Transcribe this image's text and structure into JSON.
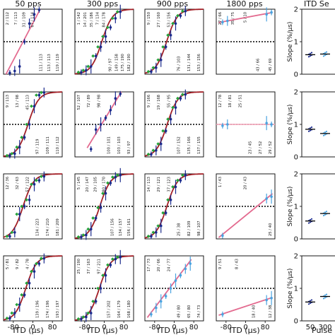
{
  "figure": {
    "columns": [
      {
        "title": "50 pps"
      },
      {
        "title": "300 pps"
      },
      {
        "title": "900 pps"
      },
      {
        "title": "1800 pps"
      }
    ],
    "slope_panel_title": "ITD Se",
    "xlabel": "ITD (µs)",
    "slope_ylabel": "Slope (%/µs)",
    "slope_xlabel": "Pulse R",
    "colors": {
      "sigmoid": "#a31f26",
      "linear": "#e36a8f",
      "flat": "#f4aec0",
      "marker_dark": "#1a2a8c",
      "marker_light": "#4aa3e0",
      "diamond": "#25a23a"
    }
  },
  "chart_data": {
    "type": "scatter",
    "xlim": [
      -120,
      120
    ],
    "ylim": [
      0,
      1
    ],
    "reference_line_y": 0.5,
    "x_ticks": [
      -80,
      0,
      80
    ],
    "x_tick_labels": [
      "-80",
      "0",
      "80"
    ],
    "panels": [
      {
        "row": 0,
        "col": 0,
        "fit": "linear",
        "points": [
          [
            -100,
            0.02
          ],
          [
            -80,
            0.05
          ],
          [
            -60,
            0.12
          ],
          [
            -40,
            0.5
          ],
          [
            -20,
            0.78
          ],
          [
            0,
            0.92
          ],
          [
            20,
            0.99
          ]
        ],
        "labels": [
          "2 / 112",
          "7 / 113",
          "31 / 109",
          "67 / 114",
          "111 / 113",
          "113 / 113",
          "119 / 119"
        ]
      },
      {
        "row": 0,
        "col": 1,
        "fit": "sigmoid",
        "points": [
          [
            -100,
            0.03
          ],
          [
            -80,
            0.06
          ],
          [
            -60,
            0.12
          ],
          [
            -40,
            0.28
          ],
          [
            -20,
            0.42
          ],
          [
            0,
            0.58
          ],
          [
            20,
            0.72
          ],
          [
            40,
            0.86
          ],
          [
            60,
            0.96
          ]
        ],
        "labels": [
          "1 / 142",
          "14 / 201",
          "35 / 186",
          "7 / 134",
          "84 / 178",
          "90 / 97",
          "149 / 158",
          "175 / 190",
          "182 / 190"
        ]
      },
      {
        "row": 0,
        "col": 2,
        "fit": "sigmoid",
        "points": [
          [
            -100,
            0.04
          ],
          [
            -80,
            0.1
          ],
          [
            -60,
            0.22
          ],
          [
            -40,
            0.42
          ],
          [
            -20,
            0.6
          ],
          [
            0,
            0.78
          ],
          [
            20,
            0.9
          ],
          [
            40,
            0.97
          ]
        ],
        "labels": [
          "9 / 150",
          "27 / 160",
          "53 / 156",
          "76 / 103",
          "131 / 144",
          "153 / 156"
        ]
      },
      {
        "row": 0,
        "col": 3,
        "fit": "linear",
        "points": [
          [
            -100,
            0.8
          ],
          [
            -80,
            0.82
          ],
          [
            80,
            0.92
          ],
          [
            100,
            0.95
          ]
        ],
        "labels": [
          "27 / 66",
          "35 / 75",
          "5 / 10",
          "43 / 66",
          "45 / 69"
        ]
      },
      {
        "row": 1,
        "col": 0,
        "fit": "sigmoid",
        "points": [
          [
            -100,
            0.02
          ],
          [
            -80,
            0.05
          ],
          [
            -60,
            0.15
          ],
          [
            -40,
            0.3
          ],
          [
            -20,
            0.5
          ],
          [
            0,
            0.78
          ],
          [
            20,
            0.95
          ],
          [
            40,
            0.99
          ]
        ],
        "labels": [
          "9 / 113",
          "13 / 98",
          "45 / 113",
          "97 / 119",
          "109 / 111",
          "110 / 112"
        ]
      },
      {
        "row": 1,
        "col": 1,
        "fit": "linear",
        "points": [
          [
            -60,
            0.12
          ],
          [
            -40,
            0.42
          ],
          [
            -20,
            0.5
          ],
          [
            0,
            0.6
          ],
          [
            20,
            0.72
          ],
          [
            40,
            0.9
          ],
          [
            60,
            0.97
          ]
        ],
        "labels": [
          "52 / 107",
          "72 / 89",
          "98 / 98",
          "100 / 101",
          "103 / 103",
          "93 / 97"
        ]
      },
      {
        "row": 1,
        "col": 2,
        "fit": "sigmoid",
        "points": [
          [
            -100,
            0.04
          ],
          [
            -80,
            0.1
          ],
          [
            -60,
            0.2
          ],
          [
            -40,
            0.4
          ],
          [
            -20,
            0.58
          ],
          [
            0,
            0.76
          ],
          [
            20,
            0.9
          ],
          [
            40,
            0.96
          ]
        ],
        "labels": [
          "9 / 166",
          "19 / 168",
          "55 / 95",
          "107 / 152",
          "135 / 166",
          "137 / 155"
        ]
      },
      {
        "row": 1,
        "col": 3,
        "fit": "flat",
        "points": [
          [
            -100,
            0.48
          ],
          [
            -80,
            0.5
          ],
          [
            80,
            0.52
          ],
          [
            100,
            0.5
          ]
        ],
        "labels": [
          "12 / 78",
          "18 / 81",
          "25 / 51",
          "23 / 45",
          "27 / 52",
          "29 / 52"
        ]
      },
      {
        "row": 2,
        "col": 0,
        "fit": "sigmoid",
        "points": [
          [
            -100,
            0.04
          ],
          [
            -80,
            0.1
          ],
          [
            -60,
            0.38
          ],
          [
            -40,
            0.5
          ],
          [
            -20,
            0.6
          ],
          [
            0,
            0.84
          ],
          [
            20,
            0.9
          ],
          [
            40,
            0.96
          ]
        ],
        "labels": [
          "12 / 36",
          "32 / 63",
          "57 / 122",
          "134 / 223",
          "174 / 210",
          "181 / 209"
        ]
      },
      {
        "row": 2,
        "col": 1,
        "fit": "sigmoid",
        "points": [
          [
            -100,
            0.03
          ],
          [
            -80,
            0.06
          ],
          [
            -60,
            0.15
          ],
          [
            -40,
            0.32
          ],
          [
            -20,
            0.48
          ],
          [
            0,
            0.7
          ],
          [
            20,
            0.86
          ],
          [
            40,
            0.95
          ],
          [
            60,
            0.98
          ]
        ],
        "labels": [
          "5 / 145",
          "20 / 147",
          "29 / 105",
          "80 / 170",
          "107 / 156",
          "134 / 157",
          "156 / 161"
        ]
      },
      {
        "row": 2,
        "col": 2,
        "fit": "sigmoid",
        "points": [
          [
            -100,
            0.04
          ],
          [
            -80,
            0.1
          ],
          [
            -60,
            0.2
          ],
          [
            -40,
            0.4
          ],
          [
            -20,
            0.6
          ],
          [
            0,
            0.8
          ],
          [
            20,
            0.9
          ],
          [
            40,
            0.98
          ]
        ],
        "labels": [
          "14 / 113",
          "29 / 121",
          "37 / 123",
          "25 / 38",
          "82 / 109",
          "98 / 107"
        ]
      },
      {
        "row": 2,
        "col": 3,
        "fit": "linear",
        "points": [
          [
            -100,
            0.05
          ],
          [
            80,
            0.62
          ],
          [
            100,
            0.65
          ]
        ],
        "labels": [
          "1 / 43",
          "20 / 43",
          "25 / 40"
        ]
      },
      {
        "row": 3,
        "col": 0,
        "fit": "sigmoid",
        "points": [
          [
            -100,
            0.04
          ],
          [
            -80,
            0.12
          ],
          [
            -60,
            0.25
          ],
          [
            -40,
            0.4
          ],
          [
            -20,
            0.58
          ],
          [
            0,
            0.76
          ],
          [
            20,
            0.88
          ],
          [
            40,
            0.96
          ]
        ],
        "labels": [
          "5 / 81",
          "9 / 82",
          "4 / 78",
          "139 / 196",
          "174 / 196",
          "193 / 197"
        ]
      },
      {
        "row": 3,
        "col": 1,
        "fit": "sigmoid",
        "points": [
          [
            -100,
            0.03
          ],
          [
            -80,
            0.06
          ],
          [
            -60,
            0.12
          ],
          [
            -40,
            0.3
          ],
          [
            -20,
            0.5
          ],
          [
            0,
            0.7
          ],
          [
            20,
            0.86
          ],
          [
            40,
            0.95
          ],
          [
            60,
            0.98
          ]
        ],
        "labels": [
          "25 / 190",
          "37 / 163",
          "97 / 211",
          "157 / 202",
          "164 / 179",
          "168 / 180"
        ]
      },
      {
        "row": 3,
        "col": 2,
        "fit": "linear",
        "points": [
          [
            -100,
            0.1
          ],
          [
            -80,
            0.2
          ],
          [
            -60,
            0.3
          ],
          [
            -40,
            0.38
          ],
          [
            -20,
            0.5
          ],
          [
            0,
            0.62
          ],
          [
            20,
            0.7
          ],
          [
            40,
            0.8
          ],
          [
            60,
            0.88
          ]
        ],
        "labels": [
          "17 / 73",
          "20 / 66",
          "24 / 77",
          "49 / 80",
          "65 / 80",
          "74 / 73"
        ]
      },
      {
        "row": 3,
        "col": 3,
        "fit": "linear",
        "points": [
          [
            -100,
            0.1
          ],
          [
            80,
            0.32
          ],
          [
            100,
            0.35
          ]
        ],
        "labels": [
          "9 / 51",
          "8 / 43",
          "18 / 40",
          "12 / 38"
        ]
      }
    ],
    "slope_panels": {
      "ylim": [
        0,
        2
      ],
      "y_ticks": [
        0,
        1,
        2
      ],
      "x_ticks": [
        "50",
        "300"
      ],
      "rows": [
        {
          "row": 0,
          "values": [
            0.6,
            0.62
          ]
        },
        {
          "row": 1,
          "values": [
            0.85,
            0.72
          ]
        },
        {
          "row": 2,
          "values": [
            0.55,
            0.78
          ]
        },
        {
          "row": 3,
          "values": [
            0.58,
            0.75
          ]
        }
      ]
    }
  }
}
